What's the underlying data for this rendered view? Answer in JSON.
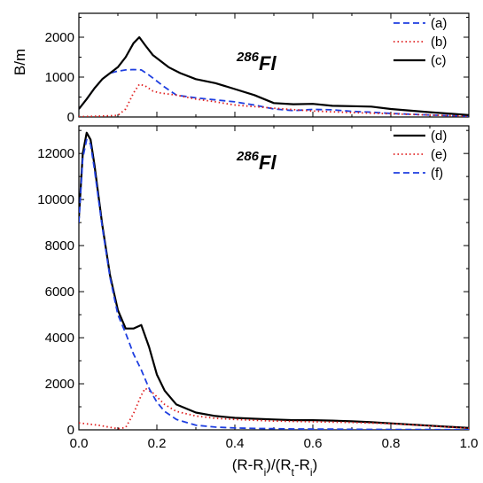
{
  "chart_data": [
    {
      "type": "line",
      "ylabel": "B/m",
      "annotation": {
        "mass": "286",
        "element": "Fl"
      },
      "xlim": [
        0,
        1
      ],
      "ylim": [
        0,
        2600
      ],
      "yticks": [
        0,
        1000,
        2000
      ],
      "xticks": [
        0,
        0.2,
        0.4,
        0.6,
        0.8,
        1.0
      ],
      "legend_position": "top-right",
      "series": [
        {
          "name": "(a)",
          "color": "#1f3fe0",
          "style": "dashed",
          "x": [
            0.0,
            0.02,
            0.04,
            0.06,
            0.08,
            0.1,
            0.12,
            0.14,
            0.16,
            0.18,
            0.2,
            0.22,
            0.25,
            0.3,
            0.35,
            0.4,
            0.45,
            0.5,
            0.55,
            0.6,
            0.65,
            0.7,
            0.75,
            0.8,
            0.9,
            1.0
          ],
          "y": [
            200,
            450,
            720,
            950,
            1100,
            1150,
            1180,
            1190,
            1180,
            1050,
            900,
            750,
            550,
            480,
            430,
            380,
            300,
            200,
            160,
            190,
            180,
            140,
            120,
            90,
            50,
            20
          ]
        },
        {
          "name": "(b)",
          "color": "#e02020",
          "style": "dotted",
          "x": [
            0.0,
            0.05,
            0.1,
            0.12,
            0.14,
            0.155,
            0.17,
            0.19,
            0.21,
            0.25,
            0.3,
            0.35,
            0.4,
            0.5,
            0.6,
            0.7,
            0.8,
            0.9,
            1.0
          ],
          "y": [
            10,
            20,
            40,
            200,
            600,
            820,
            780,
            650,
            600,
            550,
            450,
            380,
            300,
            220,
            150,
            110,
            80,
            50,
            20
          ]
        },
        {
          "name": "(c)",
          "color": "#000000",
          "style": "solid",
          "x": [
            0.0,
            0.02,
            0.04,
            0.06,
            0.08,
            0.1,
            0.12,
            0.14,
            0.155,
            0.17,
            0.19,
            0.21,
            0.23,
            0.26,
            0.3,
            0.35,
            0.4,
            0.45,
            0.5,
            0.55,
            0.6,
            0.65,
            0.7,
            0.75,
            0.8,
            0.9,
            1.0
          ],
          "y": [
            200,
            450,
            720,
            950,
            1100,
            1250,
            1500,
            1850,
            2000,
            1800,
            1550,
            1400,
            1250,
            1100,
            950,
            850,
            700,
            550,
            350,
            320,
            330,
            280,
            270,
            260,
            200,
            120,
            50
          ]
        }
      ]
    },
    {
      "type": "line",
      "xlabel": "(R-R_i)/(R_t-R_i)",
      "annotation": {
        "mass": "286",
        "element": "Fl"
      },
      "xlim": [
        0,
        1
      ],
      "ylim": [
        0,
        13200
      ],
      "yticks": [
        0,
        2000,
        4000,
        6000,
        8000,
        10000,
        12000
      ],
      "xticks": [
        0,
        0.2,
        0.4,
        0.6,
        0.8,
        1.0
      ],
      "legend_position": "top-right",
      "series": [
        {
          "name": "(d)",
          "color": "#000000",
          "style": "solid",
          "x": [
            0.0,
            0.01,
            0.02,
            0.03,
            0.04,
            0.06,
            0.08,
            0.1,
            0.12,
            0.14,
            0.16,
            0.18,
            0.2,
            0.22,
            0.25,
            0.3,
            0.35,
            0.4,
            0.45,
            0.5,
            0.55,
            0.6,
            0.65,
            0.7,
            0.75,
            0.8,
            0.9,
            1.0
          ],
          "y": [
            9200,
            12000,
            12900,
            12600,
            11500,
            8900,
            6700,
            5200,
            4400,
            4400,
            4550,
            3600,
            2400,
            1700,
            1100,
            750,
            600,
            520,
            480,
            450,
            420,
            420,
            400,
            370,
            330,
            280,
            180,
            80
          ]
        },
        {
          "name": "(e)",
          "color": "#e02020",
          "style": "dotted",
          "x": [
            0.0,
            0.05,
            0.1,
            0.12,
            0.14,
            0.16,
            0.17,
            0.19,
            0.22,
            0.25,
            0.3,
            0.35,
            0.4,
            0.5,
            0.6,
            0.7,
            0.8,
            0.9,
            1.0
          ],
          "y": [
            300,
            200,
            50,
            100,
            700,
            1500,
            1800,
            1600,
            1100,
            800,
            600,
            500,
            450,
            380,
            350,
            320,
            270,
            170,
            70
          ]
        },
        {
          "name": "(f)",
          "color": "#1f3fe0",
          "style": "dashed",
          "x": [
            0.0,
            0.01,
            0.02,
            0.03,
            0.04,
            0.06,
            0.08,
            0.1,
            0.12,
            0.14,
            0.16,
            0.18,
            0.2,
            0.22,
            0.25,
            0.3,
            0.35,
            0.4,
            0.45,
            0.5,
            0.55,
            0.6,
            0.65,
            0.7,
            0.75,
            0.8,
            0.9,
            1.0
          ],
          "y": [
            9000,
            11800,
            12600,
            12400,
            11300,
            8800,
            6600,
            5000,
            4200,
            3300,
            2600,
            1800,
            1200,
            800,
            450,
            200,
            120,
            80,
            60,
            50,
            40,
            35,
            30,
            25,
            20,
            15,
            10,
            5
          ]
        }
      ]
    }
  ]
}
